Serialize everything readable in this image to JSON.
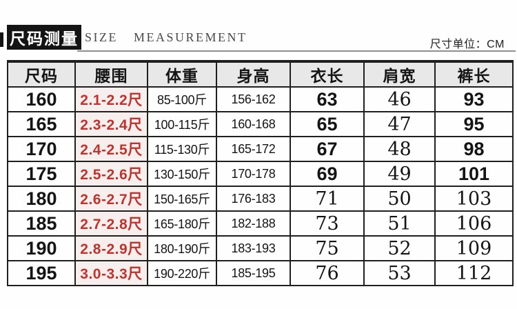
{
  "header": {
    "title": "尺码测量",
    "subtitle": "SIZE MEASUREMENT",
    "unit_note": "尺寸单位：CM"
  },
  "colors": {
    "accent_red": "#c0322c",
    "ink": "#141414",
    "border": "#1f1f1f",
    "header_bg": "#e8e8e8",
    "waist_bg": "#f6efee"
  },
  "chart_data": {
    "type": "table",
    "title": "尺码测量",
    "subtitle": "SIZE MEASUREMENT",
    "unit": "CM",
    "columns": [
      "尺码",
      "腰围",
      "体重",
      "身高",
      "衣长",
      "肩宽",
      "裤长"
    ],
    "rows": [
      [
        "160",
        "2.1-2.2尺",
        "85-100斤",
        "156-162",
        "63",
        "46",
        "93"
      ],
      [
        "165",
        "2.3-2.4尺",
        "100-115斤",
        "160-168",
        "65",
        "47",
        "95"
      ],
      [
        "170",
        "2.4-2.5尺",
        "115-130斤",
        "165-172",
        "67",
        "48",
        "98"
      ],
      [
        "175",
        "2.5-2.6尺",
        "130-150斤",
        "170-178",
        "69",
        "49",
        "101"
      ],
      [
        "180",
        "2.6-2.7尺",
        "150-165斤",
        "176-183",
        "71",
        "50",
        "103"
      ],
      [
        "185",
        "2.7-2.8尺",
        "165-180斤",
        "182-188",
        "73",
        "51",
        "106"
      ],
      [
        "190",
        "2.8-2.9尺",
        "180-190斤",
        "183-193",
        "75",
        "52",
        "109"
      ],
      [
        "195",
        "3.0-3.3尺",
        "190-220斤",
        "185-195",
        "76",
        "53",
        "112"
      ]
    ]
  }
}
